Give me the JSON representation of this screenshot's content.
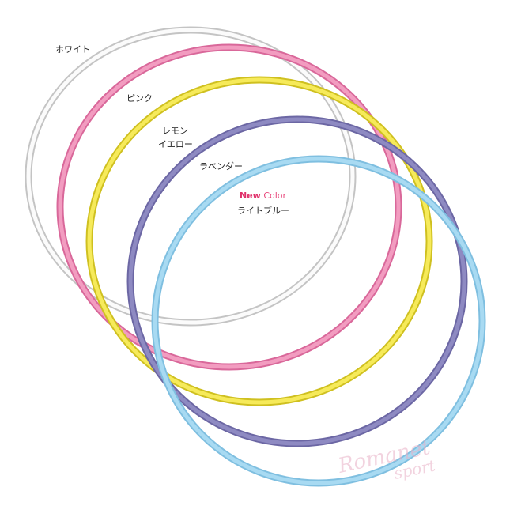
{
  "labels": {
    "white": "ホワイト",
    "pink": "ピンク",
    "lemon": [
      "レモン",
      "イエロー"
    ],
    "lavender": "ラベンダー",
    "badge": {
      "new": "New",
      "color": "Color"
    },
    "lightblue": "ライトブルー"
  },
  "watermark": [
    "Romanet",
    "sport"
  ]
}
